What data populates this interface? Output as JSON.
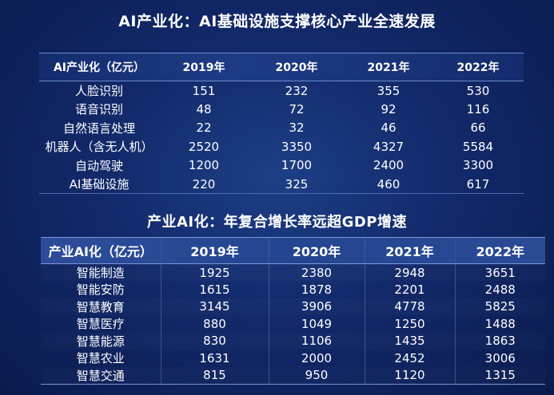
{
  "title1": "AI产业化：AI基础设施支撑核心产业全速发展",
  "title2": "产业AI化：年复合增长率远超GDP增速",
  "table1": {
    "headers": [
      "AI产业化（亿元）",
      "2019年",
      "2020年",
      "2021年",
      "2022年"
    ],
    "rows": [
      [
        "人脸识别",
        "151",
        "232",
        "355",
        "530"
      ],
      [
        "语音识别",
        "48",
        "72",
        "92",
        "116"
      ],
      [
        "自然语言处理",
        "22",
        "32",
        "46",
        "66"
      ],
      [
        "机器人（含无人机）",
        "2520",
        "3350",
        "4327",
        "5584"
      ],
      [
        "自动驾驶",
        "1200",
        "1700",
        "2400",
        "3300"
      ],
      [
        "AI基础设施",
        "220",
        "325",
        "460",
        "617"
      ]
    ]
  },
  "table2": {
    "headers": [
      "产业AI化（亿元）",
      "2019年",
      "2020年",
      "2021年",
      "2022年"
    ],
    "rows": [
      [
        "智能制造",
        "1925",
        "2380",
        "2948",
        "3651"
      ],
      [
        "智能安防",
        "1615",
        "1878",
        "2201",
        "2488"
      ],
      [
        "智慧教育",
        "3145",
        "3906",
        "4778",
        "5825"
      ],
      [
        "智慧医疗",
        "880",
        "1049",
        "1250",
        "1488"
      ],
      [
        "智慧能源",
        "830",
        "1106",
        "1435",
        "1863"
      ],
      [
        "智慧农业",
        "1631",
        "2000",
        "2452",
        "3006"
      ],
      [
        "智慧交通",
        "815",
        "950",
        "1120",
        "1315"
      ]
    ]
  }
}
